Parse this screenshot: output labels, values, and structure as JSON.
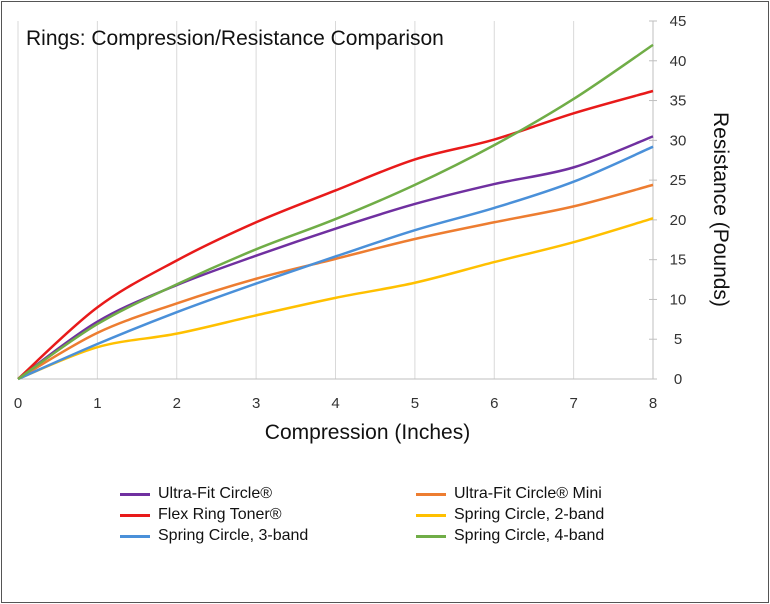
{
  "chart_data": {
    "type": "line",
    "title": "Rings: Compression/Resistance Comparison",
    "xlabel": "Compression (Inches)",
    "ylabel": "Resistance (Pounds)",
    "xlim": [
      0,
      8
    ],
    "ylim": [
      0,
      45
    ],
    "x_ticks": [
      0,
      1,
      2,
      3,
      4,
      5,
      6,
      7,
      8
    ],
    "y_ticks": [
      0,
      5,
      10,
      15,
      20,
      25,
      30,
      35,
      40,
      45
    ],
    "grid": "vertical",
    "legend_position": "bottom",
    "x": [
      0,
      1,
      2,
      3,
      4,
      5,
      6,
      7,
      8
    ],
    "series": [
      {
        "name": "Ultra-Fit Circle®",
        "color": "#7030A0",
        "values": [
          0,
          7.2,
          11.8,
          15.5,
          18.9,
          22,
          24.5,
          26.6,
          30.5
        ]
      },
      {
        "name": "Ultra-Fit Circle® Mini",
        "color": "#ED7D31",
        "values": [
          0,
          5.8,
          9.5,
          12.6,
          15.1,
          17.6,
          19.7,
          21.7,
          24.4
        ]
      },
      {
        "name": "Flex Ring Toner®",
        "color": "#E81A1A",
        "values": [
          0,
          9,
          14.9,
          19.7,
          23.7,
          27.6,
          30.1,
          33.4,
          36.2
        ]
      },
      {
        "name": "Spring Circle, 2-band",
        "color": "#FFC000",
        "values": [
          0,
          4,
          5.7,
          8,
          10.2,
          12.1,
          14.7,
          17.2,
          20.2
        ]
      },
      {
        "name": "Spring Circle, 3-band",
        "color": "#4A90D9",
        "values": [
          0,
          4.4,
          8.4,
          12,
          15.4,
          18.7,
          21.5,
          24.8,
          29.2
        ]
      },
      {
        "name": "Spring Circle, 4-band",
        "color": "#70AD47",
        "values": [
          0,
          6.9,
          11.9,
          16.3,
          20.1,
          24.4,
          29.4,
          35.2,
          42
        ]
      }
    ]
  }
}
